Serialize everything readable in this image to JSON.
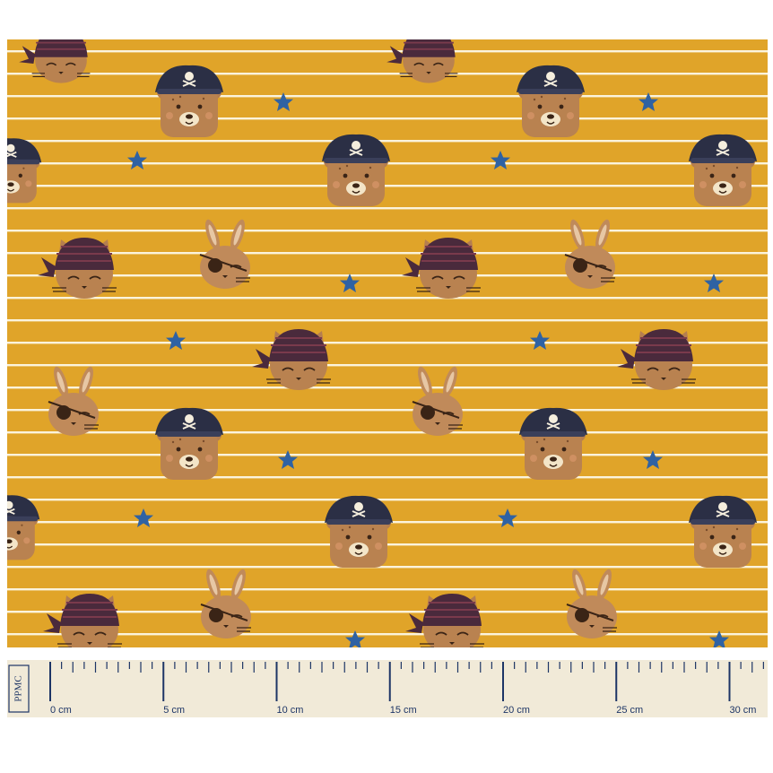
{
  "fabric": {
    "background": "#e0a429",
    "stripe_color": "#fbf3dc",
    "star_color": "#2f62a3",
    "motifs": [
      "pirate-bear-face",
      "pirate-cat-bandana",
      "bunny-eyepatch",
      "star"
    ]
  },
  "ruler": {
    "brand": "PPMC",
    "unit": "cm",
    "labels": [
      "0 cm",
      "5 cm",
      "10 cm",
      "15 cm",
      "20 cm",
      "25 cm",
      "30 cm"
    ],
    "background": "#f1ead8",
    "mark_color": "#1d3566"
  }
}
